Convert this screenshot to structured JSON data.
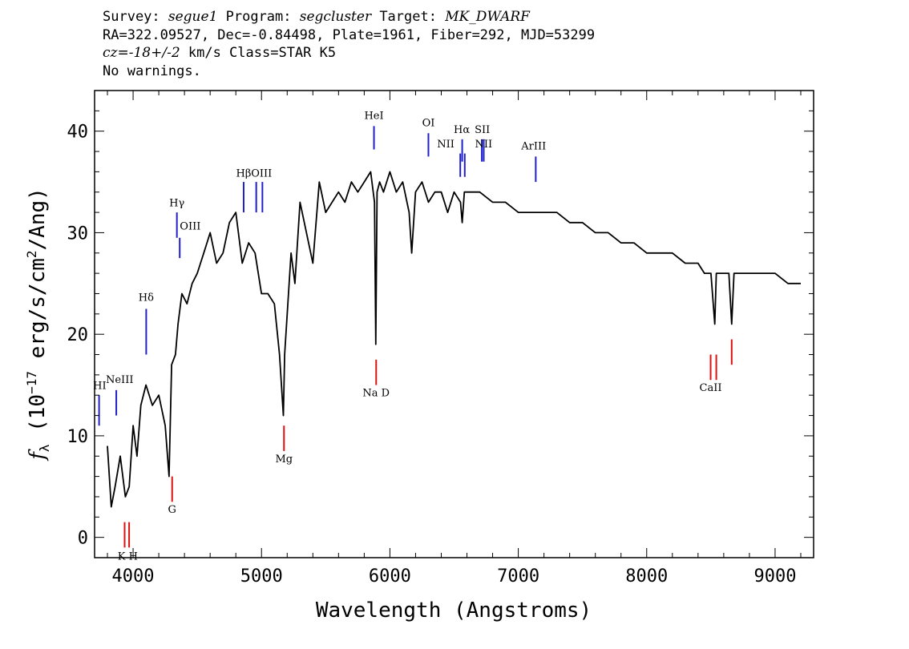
{
  "header": {
    "line1": {
      "survey_label": "Survey: ",
      "survey": "segue1",
      "program_label": " Program: ",
      "program": "segcluster",
      "target_label": " Target: ",
      "target": "MK_DWARF"
    },
    "line2": "RA=322.09527, Dec=-0.84498, Plate=1961, Fiber=292, MJD=53299",
    "line3": {
      "cz": "cz=-18+/-2",
      "rest": " km/s Class=STAR K5"
    },
    "line4": "No warnings."
  },
  "chart_data": {
    "type": "line",
    "xlabel": "Wavelength (Angstroms)",
    "ylabel": "f_λ (10^-17 erg/s/cm^2/Ang)",
    "ylabel_parts": {
      "f": "f",
      "sub": "λ",
      "pre": " (10",
      "exp1": "−17",
      "mid": " erg/s/cm",
      "exp2": "2",
      "post": "/Ang)"
    },
    "xlim": [
      3700,
      9300
    ],
    "ylim": [
      -2,
      44
    ],
    "x_ticks": [
      4000,
      5000,
      6000,
      7000,
      8000,
      9000
    ],
    "y_ticks": [
      0,
      10,
      20,
      30,
      40
    ],
    "series": [
      {
        "color": "#000000",
        "x": [
          3800,
          3830,
          3860,
          3900,
          3940,
          3970,
          4000,
          4030,
          4060,
          4100,
          4150,
          4200,
          4250,
          4280,
          4300,
          4330,
          4350,
          4380,
          4420,
          4460,
          4500,
          4550,
          4600,
          4650,
          4700,
          4750,
          4800,
          4850,
          4900,
          4950,
          5000,
          5050,
          5100,
          5140,
          5170,
          5180,
          5200,
          5230,
          5260,
          5300,
          5350,
          5400,
          5450,
          5500,
          5550,
          5600,
          5650,
          5700,
          5750,
          5800,
          5850,
          5880,
          5890,
          5900,
          5920,
          5950,
          6000,
          6050,
          6100,
          6150,
          6170,
          6200,
          6250,
          6300,
          6350,
          6400,
          6450,
          6500,
          6550,
          6563,
          6580,
          6650,
          6700,
          6800,
          6900,
          7000,
          7100,
          7200,
          7300,
          7400,
          7500,
          7600,
          7700,
          7800,
          7900,
          8000,
          8100,
          8200,
          8300,
          8400,
          8450,
          8500,
          8530,
          8542,
          8560,
          8600,
          8640,
          8662,
          8680,
          8750,
          8800,
          8850,
          8900,
          9000,
          9100,
          9150,
          9200
        ],
        "y": [
          9,
          3,
          5,
          8,
          4,
          5,
          11,
          8,
          13,
          15,
          13,
          14,
          11,
          6,
          17,
          18,
          21,
          24,
          23,
          25,
          26,
          28,
          30,
          27,
          28,
          31,
          32,
          27,
          29,
          28,
          24,
          24,
          23,
          18,
          12,
          18,
          22,
          28,
          25,
          33,
          30,
          27,
          35,
          32,
          33,
          34,
          33,
          35,
          34,
          35,
          36,
          33,
          19,
          34,
          35,
          34,
          36,
          34,
          35,
          32,
          28,
          34,
          35,
          33,
          34,
          34,
          32,
          34,
          33,
          31,
          34,
          34,
          34,
          33,
          33,
          32,
          32,
          32,
          32,
          31,
          31,
          30,
          30,
          29,
          29,
          28,
          28,
          28,
          27,
          27,
          26,
          26,
          21,
          26,
          26,
          26,
          26,
          21,
          26,
          26,
          26,
          26,
          26,
          26,
          25,
          25,
          25
        ]
      }
    ],
    "lines_blue": [
      {
        "label": "HI",
        "x": 3735,
        "y0": 11,
        "y1": 14
      },
      {
        "label": "NeIII",
        "x": 3869,
        "y0": 12,
        "y1": 14.5
      },
      {
        "label": "Hδ",
        "x": 4102,
        "y0": 18,
        "y1": 22.5
      },
      {
        "label": "Hγ",
        "x": 4341,
        "y0": 29.5,
        "y1": 32
      },
      {
        "label": "OIII",
        "x": 4363,
        "y0": 27.5,
        "y1": 29.5
      },
      {
        "label": "Hβ",
        "x": 4861,
        "y0": 32,
        "y1": 35
      },
      {
        "label": "OIII",
        "x": 4959,
        "y0": 32,
        "y1": 35
      },
      {
        "label": "OIII",
        "x": 5007,
        "y0": 32,
        "y1": 35
      },
      {
        "label": "HeI",
        "x": 5876,
        "y0": 38.2,
        "y1": 40.5
      },
      {
        "label": "OI",
        "x": 6300,
        "y0": 37.5,
        "y1": 39.8
      },
      {
        "label": "NII",
        "x": 6548,
        "y0": 35.5,
        "y1": 37.8
      },
      {
        "label": "Hα",
        "x": 6563,
        "y0": 37,
        "y1": 39.2
      },
      {
        "label": "NII",
        "x": 6583,
        "y0": 35.5,
        "y1": 37.8
      },
      {
        "label": "SII",
        "x": 6716,
        "y0": 37,
        "y1": 39.2
      },
      {
        "label": "SII",
        "x": 6731,
        "y0": 37,
        "y1": 39.2
      },
      {
        "label": "ArIII",
        "x": 7136,
        "y0": 35,
        "y1": 37.5
      }
    ],
    "lines_red": [
      {
        "label": "K",
        "x": 3934,
        "y0": -1,
        "y1": 1.5
      },
      {
        "label": "H",
        "x": 3969,
        "y0": -1,
        "y1": 1.5
      },
      {
        "label": "G",
        "x": 4304,
        "y0": 3.5,
        "y1": 6
      },
      {
        "label": "Mg",
        "x": 5175,
        "y0": 8.5,
        "y1": 11
      },
      {
        "label": "Na D",
        "x": 5893,
        "y0": 15,
        "y1": 17.5
      },
      {
        "label": "CaII",
        "x": 8498,
        "y0": 15.5,
        "y1": 18
      },
      {
        "label": "CaII",
        "x": 8542,
        "y0": 15.5,
        "y1": 18
      },
      {
        "label": "CaII",
        "x": 8662,
        "y0": 17,
        "y1": 19.5
      }
    ],
    "line_labels": [
      {
        "text": "HI",
        "x": 3740,
        "y": 14.6
      },
      {
        "text": "NeIII",
        "x": 3895,
        "y": 15.2
      },
      {
        "text": "Hδ",
        "x": 4102,
        "y": 23.3
      },
      {
        "text": "Hγ",
        "x": 4341,
        "y": 32.6
      },
      {
        "text": "OIII",
        "x": 4445,
        "y": 30.3
      },
      {
        "text": "Hβ",
        "x": 4861,
        "y": 35.5
      },
      {
        "text": "OIII",
        "x": 5000,
        "y": 35.5
      },
      {
        "text": "HeI",
        "x": 5876,
        "y": 41.2
      },
      {
        "text": "OI",
        "x": 6300,
        "y": 40.5
      },
      {
        "text": "NII",
        "x": 6435,
        "y": 38.4
      },
      {
        "text": "Hα",
        "x": 6560,
        "y": 39.8
      },
      {
        "text": "SII",
        "x": 6720,
        "y": 39.8
      },
      {
        "text": "NII",
        "x": 6730,
        "y": 38.4
      },
      {
        "text": "ArIII",
        "x": 7120,
        "y": 38.2
      },
      {
        "text": "K H",
        "x": 3958,
        "y": -2.2
      },
      {
        "text": "G",
        "x": 4304,
        "y": 2.4
      },
      {
        "text": "Mg",
        "x": 5175,
        "y": 7.4
      },
      {
        "text": "Na D",
        "x": 5893,
        "y": 13.9
      },
      {
        "text": "CaII",
        "x": 8498,
        "y": 14.4
      }
    ]
  }
}
